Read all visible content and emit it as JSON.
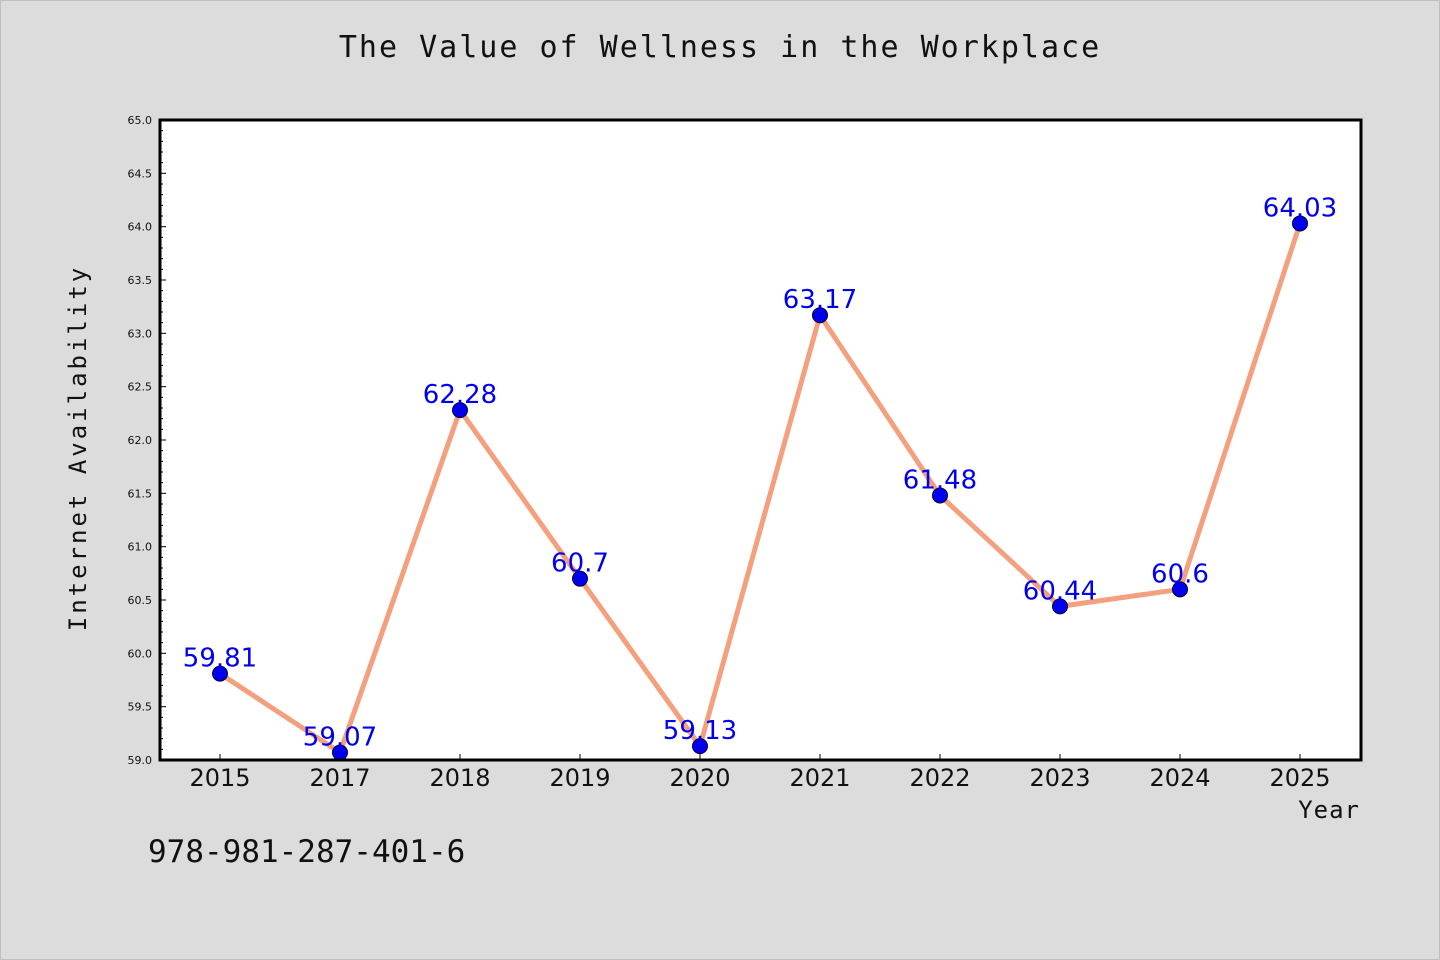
{
  "chart_data": {
    "type": "line",
    "title": "The Value of Wellness in the Workplace",
    "xlabel": "Year",
    "ylabel": "Internet Availability",
    "categories": [
      "2015",
      "2017",
      "2018",
      "2019",
      "2020",
      "2021",
      "2022",
      "2023",
      "2024",
      "2025"
    ],
    "series": [
      {
        "values": [
          59.81,
          59.07,
          62.28,
          60.7,
          59.13,
          63.17,
          61.48,
          60.44,
          60.6,
          64.03
        ],
        "data_labels": [
          "59.81",
          "59.07",
          "62.28",
          "60.7",
          "59.13",
          "63.17",
          "61.48",
          "60.44",
          "60.6",
          "64.03"
        ],
        "line_color": "#f4a07e",
        "marker_color": "#0000ee"
      }
    ],
    "ylim": [
      59.0,
      65.0
    ],
    "y_ticks": [
      "59.0",
      "59.5",
      "60.0",
      "60.5",
      "61.0",
      "61.5",
      "62.0",
      "62.5",
      "63.0",
      "63.5",
      "64.0",
      "64.5",
      "65.0"
    ],
    "grid": false,
    "legend": "none"
  },
  "footer_note": "978-981-287-401-6",
  "colors": {
    "background": "#dcdcdc",
    "plot_background": "#ffffff",
    "line": "#f4a07e",
    "marker": "#0000ee",
    "label": "#0000ee"
  }
}
